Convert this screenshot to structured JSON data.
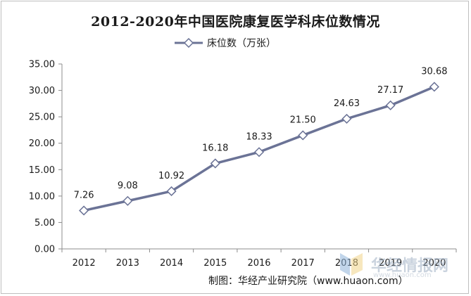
{
  "chart_data": {
    "type": "line",
    "title": "2012-2020年中国医院康复医学科床位数情况",
    "xlabel": "",
    "ylabel": "",
    "categories": [
      "2012",
      "2013",
      "2014",
      "2015",
      "2016",
      "2017",
      "2018",
      "2019",
      "2020"
    ],
    "series": [
      {
        "name": "床位数（万张）",
        "values": [
          7.26,
          9.08,
          10.92,
          16.18,
          18.33,
          21.5,
          24.63,
          27.17,
          30.68
        ],
        "labels": [
          "7.26",
          "9.08",
          "10.92",
          "16.18",
          "18.33",
          "21.50",
          "24.63",
          "27.17",
          "30.68"
        ],
        "color": "#6b7396"
      }
    ],
    "ylim": [
      0,
      35
    ],
    "yticks": [
      "0.00",
      "5.00",
      "10.00",
      "15.00",
      "20.00",
      "25.00",
      "30.00",
      "35.00"
    ],
    "grid": false,
    "legend_position": "top-center"
  },
  "credit": "制图：华经产业研究院（www.huaon.com）",
  "watermark": {
    "text": "华经情报网",
    "sub": "www.huaon.com"
  }
}
